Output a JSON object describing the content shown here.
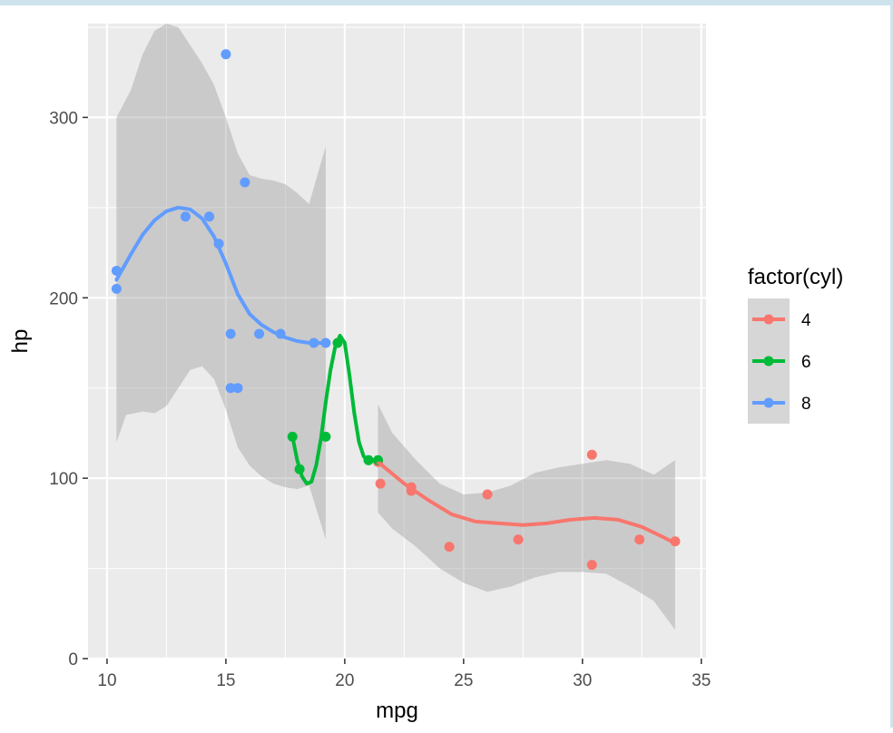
{
  "chart_data": {
    "type": "scatter",
    "xlabel": "mpg",
    "ylabel": "hp",
    "xlim": [
      9.2,
      35.2
    ],
    "ylim": [
      0,
      352
    ],
    "x_ticks": [
      10,
      15,
      20,
      25,
      30,
      35
    ],
    "y_ticks": [
      0,
      100,
      200,
      300
    ],
    "x_tick_labels": [
      "10",
      "15",
      "20",
      "25",
      "30",
      "35"
    ],
    "y_tick_labels": [
      "0",
      "100",
      "200",
      "300"
    ],
    "grid": true,
    "legend": {
      "title": "factor(cyl)",
      "position": "right",
      "entries": [
        "4",
        "6",
        "8"
      ]
    },
    "colors": {
      "4": "#F8766D",
      "6": "#00BA38",
      "8": "#619CFF",
      "panel": "#EBEBEB",
      "ribbon": "#999999"
    },
    "series": [
      {
        "name": "4",
        "points": [
          [
            22.8,
            93
          ],
          [
            24.4,
            62
          ],
          [
            22.8,
            95
          ],
          [
            32.4,
            66
          ],
          [
            30.4,
            52
          ],
          [
            33.9,
            65
          ],
          [
            21.5,
            97
          ],
          [
            27.3,
            66
          ],
          [
            26.0,
            91
          ],
          [
            30.4,
            113
          ],
          [
            21.4,
            109
          ]
        ],
        "smooth": [
          [
            21.4,
            109
          ],
          [
            22.5,
            97
          ],
          [
            23.5,
            88
          ],
          [
            24.5,
            80
          ],
          [
            25.5,
            76
          ],
          [
            26.5,
            75
          ],
          [
            27.5,
            74
          ],
          [
            28.5,
            75
          ],
          [
            29.5,
            77
          ],
          [
            30.5,
            78
          ],
          [
            31.5,
            77
          ],
          [
            32.5,
            73
          ],
          [
            33.3,
            68
          ],
          [
            33.9,
            64
          ]
        ],
        "ribbon_upper": [
          [
            21.4,
            141
          ],
          [
            22.0,
            125
          ],
          [
            23.0,
            110
          ],
          [
            24.0,
            97
          ],
          [
            25.0,
            91
          ],
          [
            26.0,
            92
          ],
          [
            27.0,
            96
          ],
          [
            28.0,
            103
          ],
          [
            29.0,
            106
          ],
          [
            30.0,
            108
          ],
          [
            31.0,
            110
          ],
          [
            32.0,
            108
          ],
          [
            33.0,
            102
          ],
          [
            33.9,
            110
          ]
        ],
        "ribbon_lower": [
          [
            21.4,
            81
          ],
          [
            22.0,
            72
          ],
          [
            23.0,
            62
          ],
          [
            24.0,
            50
          ],
          [
            25.0,
            42
          ],
          [
            26.0,
            37
          ],
          [
            27.0,
            40
          ],
          [
            28.0,
            45
          ],
          [
            29.0,
            48
          ],
          [
            30.0,
            48
          ],
          [
            31.0,
            47
          ],
          [
            32.0,
            40
          ],
          [
            33.0,
            32
          ],
          [
            33.9,
            16
          ]
        ]
      },
      {
        "name": "6",
        "points": [
          [
            21.0,
            110
          ],
          [
            21.0,
            110
          ],
          [
            21.4,
            110
          ],
          [
            18.1,
            105
          ],
          [
            19.2,
            123
          ],
          [
            17.8,
            123
          ],
          [
            19.7,
            175
          ]
        ],
        "smooth": [
          [
            17.8,
            123
          ],
          [
            18.0,
            110
          ],
          [
            18.2,
            101
          ],
          [
            18.4,
            97
          ],
          [
            18.6,
            98
          ],
          [
            18.8,
            107
          ],
          [
            19.0,
            122
          ],
          [
            19.2,
            142
          ],
          [
            19.4,
            160
          ],
          [
            19.6,
            173
          ],
          [
            19.8,
            179
          ],
          [
            20.0,
            175
          ],
          [
            20.2,
            157
          ],
          [
            20.4,
            136
          ],
          [
            20.6,
            120
          ],
          [
            20.8,
            112
          ],
          [
            21.0,
            110
          ],
          [
            21.4,
            110
          ]
        ]
      },
      {
        "name": "8",
        "points": [
          [
            18.7,
            175
          ],
          [
            14.3,
            245
          ],
          [
            16.4,
            180
          ],
          [
            17.3,
            180
          ],
          [
            15.2,
            180
          ],
          [
            10.4,
            205
          ],
          [
            10.4,
            215
          ],
          [
            14.7,
            230
          ],
          [
            15.5,
            150
          ],
          [
            15.2,
            150
          ],
          [
            13.3,
            245
          ],
          [
            19.2,
            175
          ],
          [
            15.8,
            264
          ],
          [
            15.0,
            335
          ]
        ],
        "smooth": [
          [
            10.4,
            210
          ],
          [
            11.0,
            224
          ],
          [
            11.5,
            235
          ],
          [
            12.0,
            243
          ],
          [
            12.5,
            248
          ],
          [
            13.0,
            250
          ],
          [
            13.5,
            249
          ],
          [
            14.0,
            244
          ],
          [
            14.5,
            234
          ],
          [
            15.0,
            219
          ],
          [
            15.5,
            202
          ],
          [
            16.0,
            191
          ],
          [
            16.5,
            185
          ],
          [
            17.0,
            181
          ],
          [
            17.5,
            178
          ],
          [
            18.0,
            176
          ],
          [
            18.5,
            175
          ],
          [
            19.2,
            175
          ]
        ],
        "ribbon_upper": [
          [
            10.4,
            300
          ],
          [
            11.0,
            315
          ],
          [
            11.5,
            335
          ],
          [
            12.0,
            348
          ],
          [
            12.5,
            352
          ],
          [
            13.0,
            350
          ],
          [
            13.5,
            340
          ],
          [
            14.0,
            330
          ],
          [
            14.5,
            318
          ],
          [
            15.0,
            300
          ],
          [
            15.5,
            280
          ],
          [
            16.0,
            268
          ],
          [
            16.5,
            266
          ],
          [
            17.0,
            265
          ],
          [
            17.5,
            263
          ],
          [
            18.0,
            258
          ],
          [
            18.5,
            252
          ],
          [
            19.2,
            284
          ]
        ],
        "ribbon_lower": [
          [
            10.4,
            120
          ],
          [
            10.8,
            135
          ],
          [
            11.5,
            137
          ],
          [
            12.0,
            136
          ],
          [
            12.5,
            140
          ],
          [
            13.0,
            150
          ],
          [
            13.5,
            160
          ],
          [
            14.0,
            162
          ],
          [
            14.5,
            155
          ],
          [
            15.0,
            138
          ],
          [
            15.5,
            117
          ],
          [
            16.0,
            107
          ],
          [
            16.5,
            101
          ],
          [
            17.0,
            97
          ],
          [
            17.5,
            95
          ],
          [
            18.0,
            94
          ],
          [
            18.5,
            96
          ],
          [
            19.2,
            66
          ]
        ]
      }
    ]
  }
}
